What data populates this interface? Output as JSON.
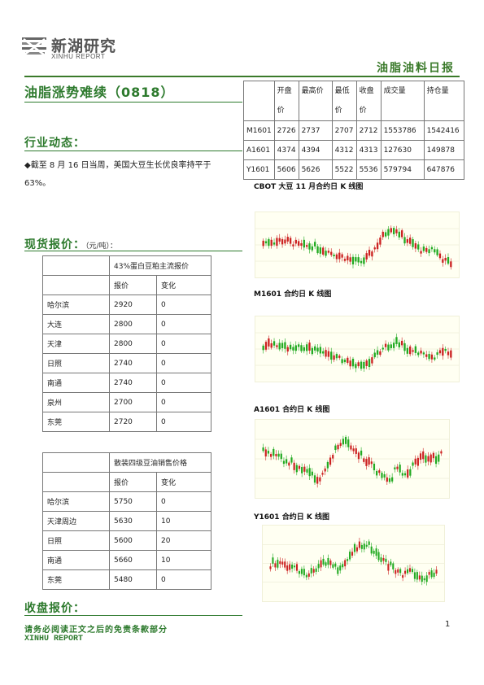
{
  "header": {
    "logo_cn": "新湖研究",
    "logo_en": "XINHU REPORT",
    "report_type": "油脂油料日报"
  },
  "title": "油脂涨势难续（0818）",
  "futures_table": {
    "headers": [
      "",
      "开盘价",
      "最高价",
      "最低价",
      "收盘价",
      "成交量",
      "持仓量"
    ],
    "rows": [
      [
        "M1601",
        "2726",
        "2737",
        "2707",
        "2712",
        "1553786",
        "1542416"
      ],
      [
        "A1601",
        "4374",
        "4394",
        "4312",
        "4313",
        "127630",
        "149878"
      ],
      [
        "Y1601",
        "5606",
        "5626",
        "5522",
        "5536",
        "579794",
        "647876"
      ]
    ]
  },
  "industry": {
    "heading": "行业动态：",
    "text": "◆截至 8 月 16 日当周，美国大豆生长优良率持平于 63%。"
  },
  "spot": {
    "heading": "现货报价：",
    "unit": "（元/吨）："
  },
  "spot_table_1": {
    "group_header": "43%蛋白豆粕主流报价",
    "col_price": "报价",
    "col_change": "变化",
    "rows": [
      [
        "哈尔滨",
        "2920",
        "0"
      ],
      [
        "大连",
        "2800",
        "0"
      ],
      [
        "天津",
        "2800",
        "0"
      ],
      [
        "日照",
        "2740",
        "0"
      ],
      [
        "南通",
        "2740",
        "0"
      ],
      [
        "泉州",
        "2700",
        "0"
      ],
      [
        "东莞",
        "2720",
        "0"
      ]
    ]
  },
  "spot_table_2": {
    "group_header": "散装四级豆油销售价格",
    "col_price": "报价",
    "col_change": "变化",
    "rows": [
      [
        "哈尔滨",
        "5750",
        "0"
      ],
      [
        "天津周边",
        "5630",
        "10"
      ],
      [
        "日照",
        "5600",
        "20"
      ],
      [
        "南通",
        "5660",
        "10"
      ],
      [
        "东莞",
        "5480",
        "0"
      ]
    ]
  },
  "close": {
    "heading": "收盘报价："
  },
  "charts": [
    {
      "title": "CBOT 大豆 11 月合约日 K 线图"
    },
    {
      "title": "M1601 合约日 K 线图"
    },
    {
      "title": "A1601 合约日 K 线图"
    },
    {
      "title": "Y1601 合约日 K 线图"
    }
  ],
  "footer": {
    "disclaimer": "请务必阅读正文之后的免责条款部分",
    "brand": "XINHU REPORT",
    "page": "1"
  },
  "colors": {
    "brand_green": "#2d7a2d",
    "candle_up": "#22aa22",
    "candle_down": "#cc2222"
  }
}
